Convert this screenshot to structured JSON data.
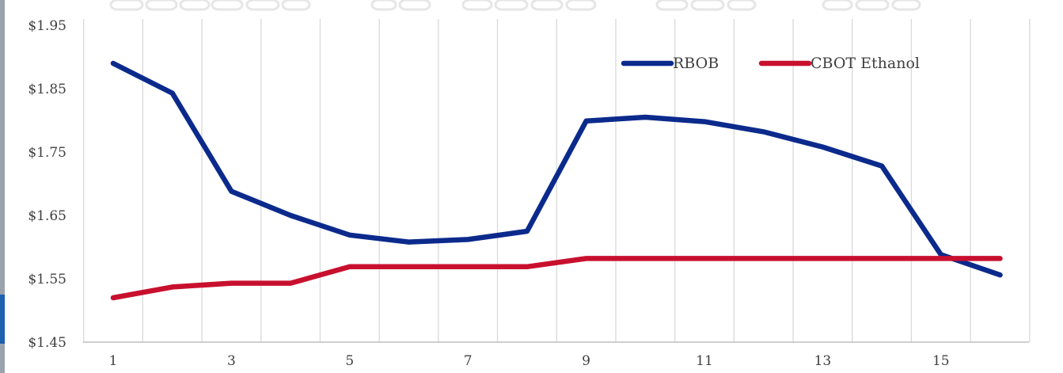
{
  "chart_data": {
    "type": "line",
    "x": [
      1,
      2,
      3,
      4,
      5,
      6,
      7,
      8,
      9,
      10,
      11,
      12,
      13,
      14,
      15,
      16
    ],
    "x_tick_labels": [
      "1",
      "3",
      "5",
      "7",
      "9",
      "11",
      "13",
      "15"
    ],
    "x_tick_values": [
      1,
      3,
      5,
      7,
      9,
      11,
      13,
      15
    ],
    "y_tick_labels": [
      "$1.45",
      "$1.55",
      "$1.65",
      "$1.75",
      "$1.85",
      "$1.95"
    ],
    "y_tick_values": [
      1.45,
      1.55,
      1.65,
      1.75,
      1.85,
      1.95
    ],
    "ylim": [
      1.45,
      1.95
    ],
    "xlim": [
      1,
      16
    ],
    "grid": "vertical",
    "legend_position": "top-right",
    "series": [
      {
        "name": "RBOB",
        "color": "#0b2a8c",
        "values": [
          1.89,
          1.843,
          1.688,
          1.65,
          1.619,
          1.608,
          1.612,
          1.625,
          1.799,
          1.805,
          1.798,
          1.782,
          1.758,
          1.728,
          1.588,
          1.556
        ]
      },
      {
        "name": "CBOT Ethanol",
        "color": "#c8102e",
        "values": [
          1.52,
          1.537,
          1.543,
          1.543,
          1.569,
          1.569,
          1.569,
          1.569,
          1.582,
          1.582,
          1.582,
          1.582,
          1.582,
          1.582,
          1.582,
          1.582
        ]
      }
    ]
  }
}
